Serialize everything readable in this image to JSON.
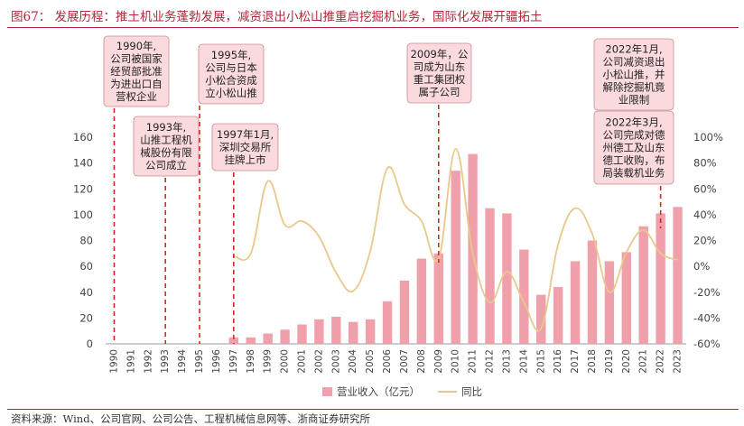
{
  "header": {
    "title": "图67： 发展历程：推土机业务蓬勃发展，减资退出小松山推重启挖掘机业务，国际化发展开疆拓土"
  },
  "footer": {
    "source": "资料来源：Wind、公司官网、公司公告、工程机械信息网等、浙商证券研究所"
  },
  "colors": {
    "bar": "#f0a0ab",
    "line": "#e8c98a",
    "marker": "#d9261c",
    "title": "#b0283a"
  },
  "chart_data": {
    "type": "bar",
    "categories": [
      "1990",
      "1991",
      "1992",
      "1993",
      "1994",
      "1995",
      "1996",
      "1997",
      "1998",
      "1999",
      "2000",
      "2001",
      "2002",
      "2003",
      "2004",
      "2005",
      "2006",
      "2007",
      "2008",
      "2009",
      "2010",
      "2011",
      "2012",
      "2013",
      "2014",
      "2015",
      "2016",
      "2017",
      "2018",
      "2019",
      "2020",
      "2021",
      "2022",
      "2023"
    ],
    "series": [
      {
        "name": "营业收入（亿元）",
        "kind": "bar",
        "axis": "left",
        "values": [
          null,
          null,
          null,
          null,
          null,
          null,
          null,
          5,
          5,
          8,
          11,
          15,
          19,
          21,
          17,
          19,
          33,
          49,
          66,
          70,
          134,
          147,
          105,
          101,
          73,
          38,
          44,
          64,
          80,
          64,
          71,
          91,
          101,
          106
        ]
      },
      {
        "name": "同比",
        "kind": "line",
        "axis": "right",
        "values": [
          null,
          null,
          null,
          null,
          null,
          null,
          null,
          8,
          10,
          66,
          32,
          35,
          23,
          -5,
          -19,
          12,
          76,
          48,
          35,
          6,
          91,
          10,
          -28,
          -4,
          -28,
          -48,
          17,
          45,
          25,
          -20,
          11,
          28,
          10,
          5
        ]
      }
    ],
    "yleft": {
      "ylim": [
        0,
        160
      ],
      "ticks": [
        0,
        20,
        40,
        60,
        80,
        100,
        120,
        140,
        160
      ]
    },
    "yright": {
      "ylim": [
        -60,
        100
      ],
      "ticks": [
        "-60%",
        "-40%",
        "-20%",
        "0%",
        "20%",
        "40%",
        "60%",
        "80%",
        "100%"
      ],
      "tick_values": [
        -60,
        -40,
        -20,
        0,
        20,
        40,
        60,
        80,
        100
      ]
    },
    "legend": {
      "placement": "bottom",
      "items": [
        "营业收入（亿元）",
        "同比"
      ]
    },
    "annotations": [
      {
        "year": "1990",
        "lines": [
          "1990年,",
          "公司被国家",
          "经贸部批准",
          "为进出口自",
          "营权企业"
        ]
      },
      {
        "year": "1993",
        "lines": [
          "1993年,",
          "山推工程机",
          "械股份有限",
          "公司成立"
        ]
      },
      {
        "year": "1995",
        "lines": [
          "1995年,",
          "公司与日本",
          "小松合资成",
          "立小松山推"
        ]
      },
      {
        "year": "1997",
        "lines": [
          "1997年1月,",
          "深圳交易所",
          "挂牌上市"
        ]
      },
      {
        "year": "2009",
        "lines": [
          "2009年，公",
          "司成为山东",
          "重工集团权",
          "属子公司"
        ]
      },
      {
        "year": "2022",
        "lines": [
          "2022年1月,",
          "公司减资退出",
          "小松山推，并",
          "解除挖掘机竟",
          "业限制"
        ]
      },
      {
        "year": "2022",
        "lines": [
          "2022年3月,",
          "公司完成对德",
          "州德工及山东",
          "德工收购，布",
          "局装载机业务"
        ]
      }
    ]
  }
}
